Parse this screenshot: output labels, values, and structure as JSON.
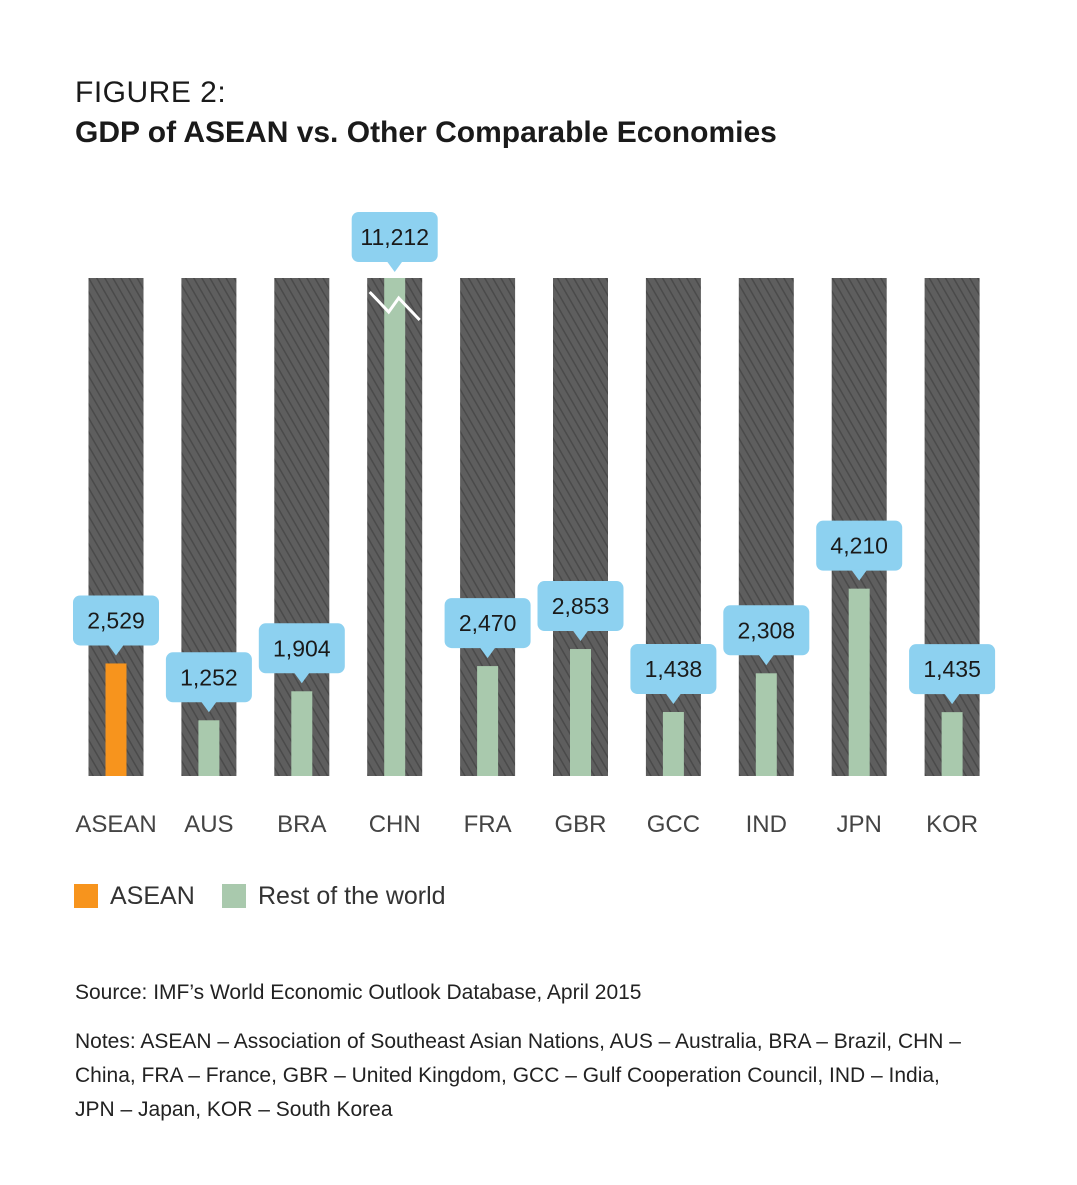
{
  "header": {
    "figure_label": "FIGURE 2:",
    "title": "GDP of ASEAN vs. Other Comparable Economies"
  },
  "chart_data": {
    "type": "bar",
    "categories": [
      "ASEAN",
      "AUS",
      "BRA",
      "CHN",
      "FRA",
      "GBR",
      "GCC",
      "IND",
      "JPN",
      "KOR"
    ],
    "values": [
      2529,
      1252,
      1904,
      11212,
      2470,
      2853,
      1438,
      2308,
      4210,
      1435
    ],
    "value_labels": [
      "2,529",
      "1,252",
      "1,904",
      "11,212",
      "2,470",
      "2,853",
      "1,438",
      "2,308",
      "4,210",
      "1,435"
    ],
    "groups": [
      "ASEAN",
      "Rest of the world",
      "Rest of the world",
      "Rest of the world",
      "Rest of the world",
      "Rest of the world",
      "Rest of the world",
      "Rest of the world",
      "Rest of the world",
      "Rest of the world"
    ],
    "broken_axis_categories": [
      "CHN"
    ],
    "title": "GDP of ASEAN vs. Other Comparable Economies",
    "xlabel": "",
    "ylabel": "",
    "ylim": [
      0,
      11212
    ],
    "grid": false,
    "legend_position": "bottom-left",
    "colors": {
      "ASEAN": "#f7941d",
      "Rest of the world": "#a9c9ad",
      "column_background": "#5a5a5a",
      "callout": "#8dd1f0"
    }
  },
  "legend": {
    "items": [
      {
        "label": "ASEAN",
        "color": "#f7941d"
      },
      {
        "label": "Rest of the world",
        "color": "#a9c9ad"
      }
    ]
  },
  "footer": {
    "source": "Source: IMF’s World Economic Outlook Database, April 2015",
    "notes": "Notes: ASEAN – Association of Southeast Asian Nations, AUS – Australia, BRA – Brazil, CHN – China, FRA – France, GBR – United Kingdom, GCC – Gulf Cooperation Council, IND – India, JPN – Japan, KOR – South Korea"
  }
}
